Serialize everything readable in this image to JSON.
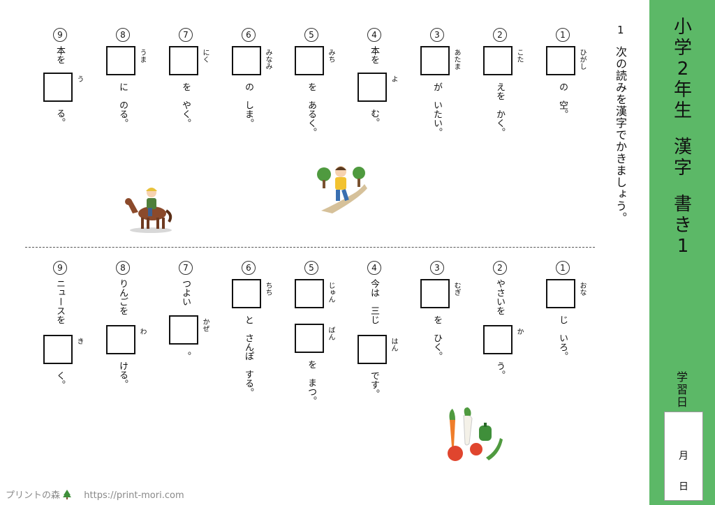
{
  "sidebar": {
    "title_top": [
      "小",
      "学",
      "2",
      "年",
      "生"
    ],
    "title_mid": [
      "漢",
      "字"
    ],
    "title_bot": [
      "書",
      "き",
      "1"
    ],
    "date_label": [
      "学",
      "習",
      "日"
    ],
    "month": "月",
    "day": "日"
  },
  "question": {
    "number": "1",
    "instruction": "次の読みを漢字でかきましょう。"
  },
  "top": [
    {
      "num": "1",
      "furi": "ひがし",
      "after": "の　空。"
    },
    {
      "num": "2",
      "furi": "こた",
      "after": "えを　かく。"
    },
    {
      "num": "3",
      "furi": "あたま",
      "after": "が　いたい。"
    },
    {
      "num": "4",
      "pre": "本を",
      "furi": "よ",
      "after": "む。"
    },
    {
      "num": "5",
      "furi": "みち",
      "after": "を　あるく。"
    },
    {
      "num": "6",
      "furi": "みなみ",
      "after": "の　しま。"
    },
    {
      "num": "7",
      "furi": "にく",
      "after": "を　やく。"
    },
    {
      "num": "8",
      "furi": "うま",
      "after": "に　のる。"
    },
    {
      "num": "9",
      "pre": "本を",
      "furi": "う",
      "after": "る。"
    }
  ],
  "bottom": [
    {
      "num": "1",
      "furi": "おな",
      "after": "じ　いろ。"
    },
    {
      "num": "2",
      "pre": "やさいを",
      "furi": "か",
      "after": "う。"
    },
    {
      "num": "3",
      "furi": "むぎ",
      "after": "を　ひく。"
    },
    {
      "num": "4",
      "pre": "今は　三じ",
      "furi": "はん",
      "after": "です。"
    },
    {
      "num": "5",
      "furi": "じゅん",
      "furi2": "ばん",
      "after": "を　まつ。"
    },
    {
      "num": "6",
      "furi": "ちち",
      "after": "と　さんぽ　する。"
    },
    {
      "num": "7",
      "pre": "つよい",
      "furi": "かぜ",
      "after": "。"
    },
    {
      "num": "8",
      "pre": "りんごを",
      "furi": "わ",
      "after": "ける。"
    },
    {
      "num": "9",
      "pre": "ニュースを",
      "furi": "き",
      "after": "く。"
    }
  ],
  "footer": {
    "brand": "プリントの森",
    "url": "https://print-mori.com"
  },
  "icons": {
    "tree": "tree-icon",
    "horse": "horse-rider-illustration",
    "walk": "walking-boy-illustration",
    "veg": "vegetables-illustration"
  }
}
